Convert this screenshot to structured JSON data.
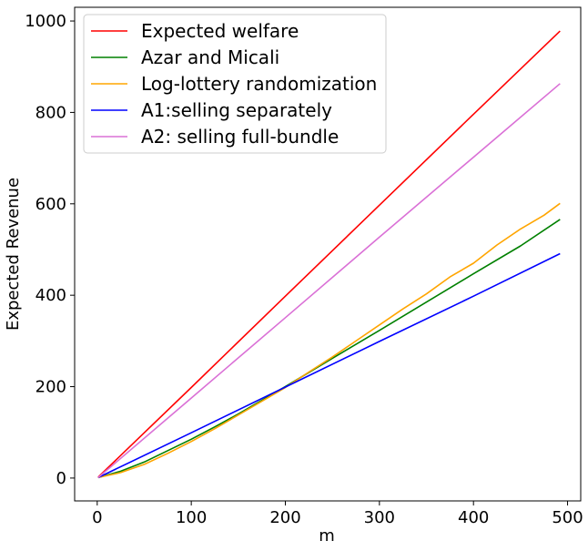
{
  "chart_data": {
    "type": "line",
    "title": "",
    "xlabel": "m",
    "ylabel": "Expected Revenue",
    "xlim": [
      -24,
      514
    ],
    "ylim": [
      -50,
      1030
    ],
    "xticks": [
      0,
      100,
      200,
      300,
      400,
      500
    ],
    "yticks": [
      0,
      200,
      400,
      600,
      800,
      1000
    ],
    "grid": false,
    "legend_position": "top-left",
    "series": [
      {
        "name": "Expected welfare",
        "color": "#ff0000",
        "x": [
          1,
          100,
          200,
          300,
          400,
          492
        ],
        "y": [
          2,
          198,
          398,
          597,
          796,
          978
        ]
      },
      {
        "name": "Azar and Micali",
        "color": "#008000",
        "x": [
          1,
          25,
          50,
          75,
          100,
          125,
          150,
          175,
          200,
          250,
          300,
          350,
          400,
          450,
          492
        ],
        "y": [
          1,
          15,
          35,
          60,
          85,
          112,
          140,
          170,
          200,
          262,
          323,
          385,
          447,
          508,
          566
        ]
      },
      {
        "name": "Log-lottery randomization",
        "color": "#ffa500",
        "x": [
          1,
          25,
          50,
          75,
          100,
          125,
          150,
          175,
          200,
          225,
          250,
          275,
          300,
          325,
          350,
          375,
          400,
          425,
          450,
          475,
          492
        ],
        "y": [
          1,
          12,
          30,
          54,
          80,
          108,
          138,
          168,
          198,
          232,
          265,
          300,
          335,
          370,
          403,
          440,
          470,
          510,
          545,
          575,
          601
        ]
      },
      {
        "name": "A1:selling separately",
        "color": "#0000ff",
        "x": [
          1,
          100,
          200,
          300,
          400,
          492
        ],
        "y": [
          1,
          99,
          199,
          299,
          398,
          491
        ]
      },
      {
        "name": "A2: selling full-bundle",
        "color": "#da70d6",
        "x": [
          1,
          100,
          200,
          300,
          400,
          492
        ],
        "y": [
          1,
          175,
          351,
          527,
          702,
          863
        ]
      }
    ]
  }
}
